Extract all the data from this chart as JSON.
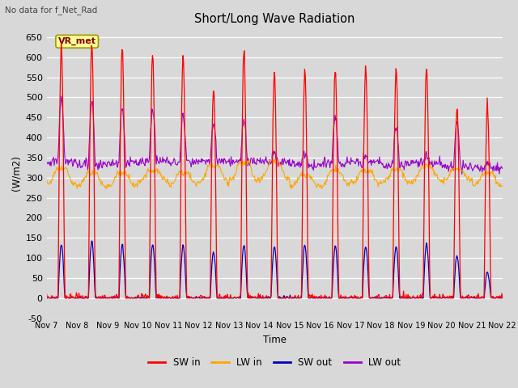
{
  "title": "Short/Long Wave Radiation",
  "ylabel": "(W/m2)",
  "xlabel": "Time",
  "note": "No data for f_Net_Rad",
  "legend_label": "VR_met",
  "ylim": [
    -50,
    675
  ],
  "yticks": [
    -50,
    0,
    50,
    100,
    150,
    200,
    250,
    300,
    350,
    400,
    450,
    500,
    550,
    600,
    650
  ],
  "xtick_labels": [
    "Nov 7",
    "Nov 8",
    "Nov 9",
    "Nov 10",
    "Nov 11",
    "Nov 12",
    "Nov 13",
    "Nov 14",
    "Nov 15",
    "Nov 16",
    "Nov 17",
    "Nov 18",
    "Nov 19",
    "Nov 20",
    "Nov 21",
    "Nov 22"
  ],
  "colors": {
    "SW_in": "#ff0000",
    "LW_in": "#ffa500",
    "SW_out": "#0000bb",
    "LW_out": "#9900cc"
  },
  "legend": [
    {
      "label": "SW in",
      "color": "#ff0000"
    },
    {
      "label": "LW in",
      "color": "#ffa500"
    },
    {
      "label": "SW out",
      "color": "#0000bb"
    },
    {
      "label": "LW out",
      "color": "#9900cc"
    }
  ],
  "background_color": "#d8d8d8",
  "plot_bg_color": "#d8d8d8",
  "grid_color": "#ffffff",
  "n_days": 15,
  "SW_in_peaks": [
    625,
    635,
    625,
    608,
    600,
    520,
    620,
    560,
    570,
    575,
    578,
    572,
    575,
    472,
    480
  ],
  "SW_out_peaks": [
    133,
    142,
    133,
    133,
    130,
    112,
    133,
    130,
    130,
    130,
    130,
    130,
    133,
    104,
    65
  ],
  "LW_in_base": [
    285,
    278,
    278,
    292,
    283,
    290,
    293,
    298,
    278,
    280,
    288,
    285,
    292,
    292,
    278
  ],
  "LW_in_day": [
    322,
    312,
    312,
    318,
    312,
    332,
    338,
    338,
    308,
    318,
    318,
    318,
    328,
    322,
    312
  ],
  "LW_out_base": [
    340,
    333,
    337,
    342,
    337,
    340,
    340,
    340,
    332,
    337,
    337,
    332,
    337,
    328,
    325
  ],
  "LW_out_peak": [
    500,
    490,
    475,
    475,
    455,
    435,
    445,
    365,
    365,
    455,
    355,
    425,
    355,
    435,
    335
  ],
  "sun_rise": 0.27,
  "sun_set": 0.72
}
